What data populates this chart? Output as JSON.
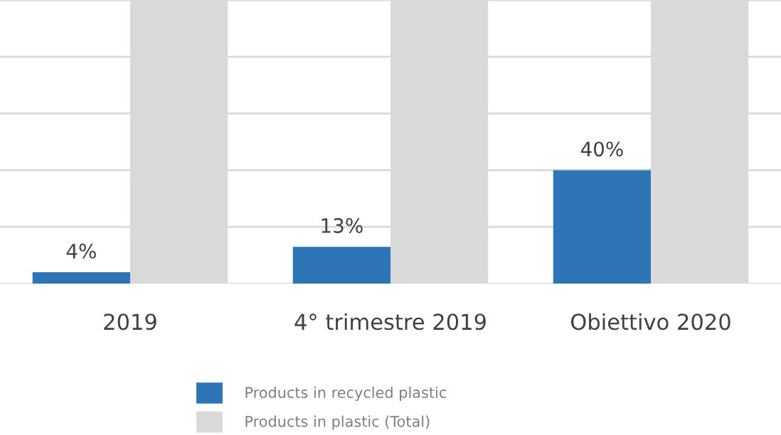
{
  "chart_data": {
    "type": "bar",
    "categories": [
      "2019",
      "4° trimestre 2019",
      "Obiettivo 2020"
    ],
    "series": [
      {
        "name": "Products in recycled plastic",
        "color": "#2e75b6",
        "values": [
          4,
          13,
          40
        ],
        "value_labels": [
          "4%",
          "13%",
          "40%"
        ]
      },
      {
        "name": "Products in plastic (Total)",
        "color": "#d9d9d9",
        "values": [
          100,
          100,
          100
        ]
      }
    ],
    "ylim": [
      0,
      100
    ],
    "yticks": [
      {
        "value": 0,
        "label": null
      },
      {
        "value": 20,
        "label": null
      },
      {
        "value": 40,
        "label": null
      },
      {
        "value": 60,
        "label": null
      },
      {
        "value": 80,
        "label": null
      },
      {
        "value": 100,
        "label": null
      }
    ],
    "grid": "y",
    "legend": "bottom",
    "tick_labels": "x"
  }
}
